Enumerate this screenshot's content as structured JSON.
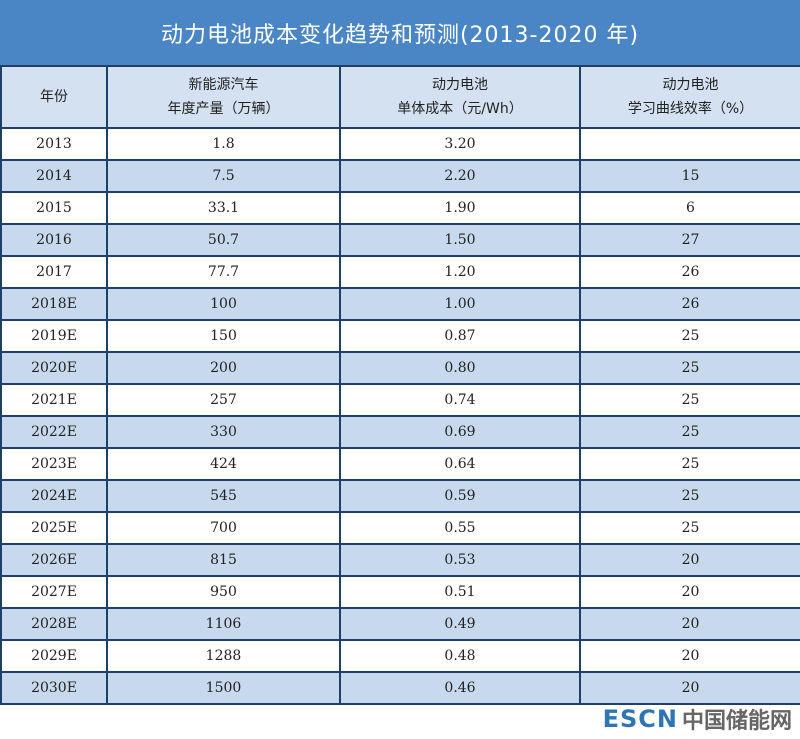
{
  "title": "动力电池成本变化趋势和预测(2013-2020 年)",
  "headers": {
    "year": [
      "年份"
    ],
    "nev": [
      "新能源汽车",
      "年度产量（万辆）"
    ],
    "cost": [
      "动力电池",
      "单体成本（元/Wh）"
    ],
    "learning": [
      "动力电池",
      "学习曲线效率（%）"
    ]
  },
  "rows": [
    {
      "year": "2013",
      "nev": "1.8",
      "cost": "3.20",
      "learning": ""
    },
    {
      "year": "2014",
      "nev": "7.5",
      "cost": "2.20",
      "learning": "15"
    },
    {
      "year": "2015",
      "nev": "33.1",
      "cost": "1.90",
      "learning": "6"
    },
    {
      "year": "2016",
      "nev": "50.7",
      "cost": "1.50",
      "learning": "27"
    },
    {
      "year": "2017",
      "nev": "77.7",
      "cost": "1.20",
      "learning": "26"
    },
    {
      "year": "2018E",
      "nev": "100",
      "cost": "1.00",
      "learning": "26"
    },
    {
      "year": "2019E",
      "nev": "150",
      "cost": "0.87",
      "learning": "25"
    },
    {
      "year": "2020E",
      "nev": "200",
      "cost": "0.80",
      "learning": "25"
    },
    {
      "year": "2021E",
      "nev": "257",
      "cost": "0.74",
      "learning": "25"
    },
    {
      "year": "2022E",
      "nev": "330",
      "cost": "0.69",
      "learning": "25"
    },
    {
      "year": "2023E",
      "nev": "424",
      "cost": "0.64",
      "learning": "25"
    },
    {
      "year": "2024E",
      "nev": "545",
      "cost": "0.59",
      "learning": "25"
    },
    {
      "year": "2025E",
      "nev": "700",
      "cost": "0.55",
      "learning": "25"
    },
    {
      "year": "2026E",
      "nev": "815",
      "cost": "0.53",
      "learning": "20"
    },
    {
      "year": "2027E",
      "nev": "950",
      "cost": "0.51",
      "learning": "20"
    },
    {
      "year": "2028E",
      "nev": "1106",
      "cost": "0.49",
      "learning": "20"
    },
    {
      "year": "2029E",
      "nev": "1288",
      "cost": "0.48",
      "learning": "20"
    },
    {
      "year": "2030E",
      "nev": "1500",
      "cost": "0.46",
      "learning": "20"
    }
  ],
  "watermark": {
    "brand": "ESCN",
    "site": "中国储能网"
  },
  "colors": {
    "title_bg": "#4a86c5",
    "header_bg": "#d3e1f1",
    "row_alt_bg": "#c8d9ee",
    "border": "#1e3f66",
    "watermark_brand": "#2e75b6"
  }
}
